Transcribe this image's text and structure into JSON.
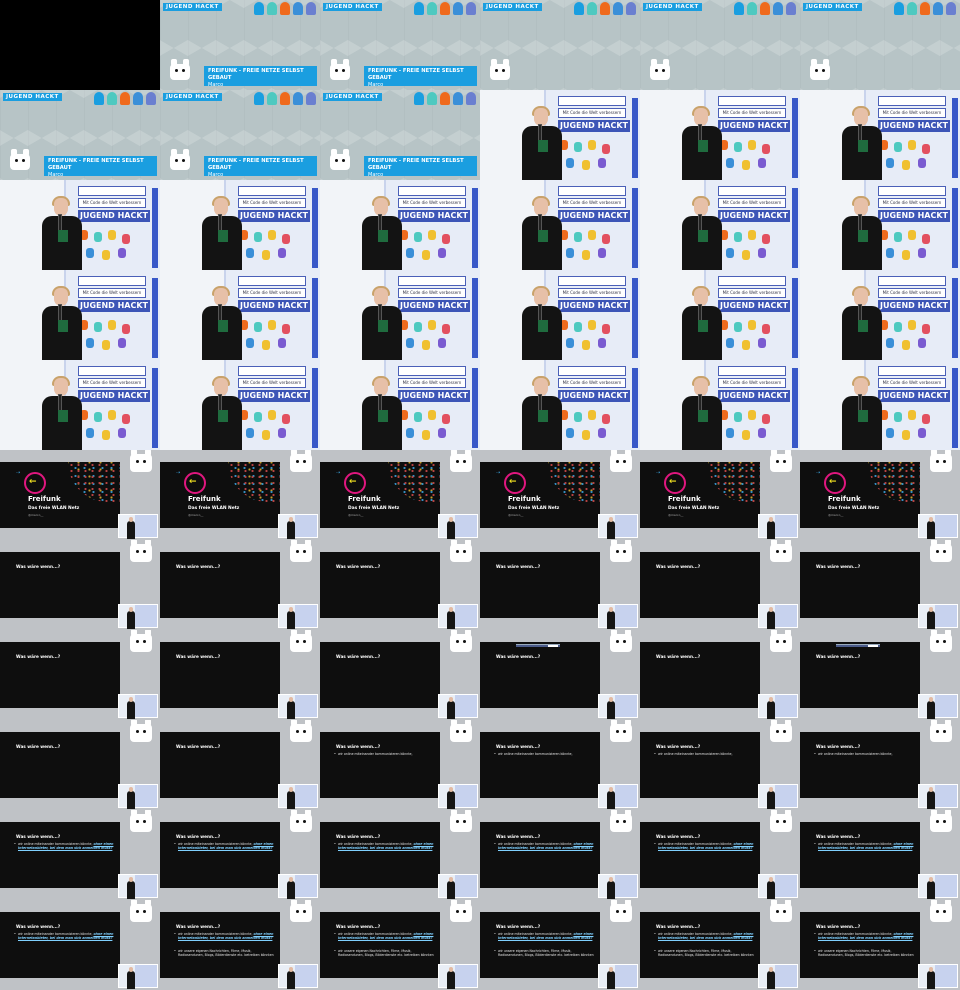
{
  "title_card": {
    "logo_text": "JUGEND HACKT",
    "banner_title": "FREIFUNK - FREIE NETZE SELBST GEBAUT",
    "speaker": "Marco"
  },
  "poster": {
    "slogan": "Mit Code die Welt verbessern",
    "logo_text": "JUGEND HACKT"
  },
  "slide_title": {
    "heading": "Freifunk",
    "subheading": "Das freie WLAN Netz",
    "author": "@marco__"
  },
  "slide_body": {
    "heading": "Was wäre wenn...?",
    "bullet1": "wir online miteinander kommunizieren könnte,",
    "bullet1_em": "ohne einen Internetanbieter, bei dem man sich anmelden muss?",
    "bullet2": "wir unsere eigenen Nachrichten, Filme, Musik, Radiosendunen, Blogs, Bilderdienste etc. betreiben könnten"
  },
  "robot_colors": [
    "#1a9ee0",
    "#4ec9c0",
    "#ef6a1c",
    "#3a8fd8",
    "#6a7fd0"
  ],
  "accent": "#1a9ee0",
  "slide_bg": "#0e0e0e"
}
